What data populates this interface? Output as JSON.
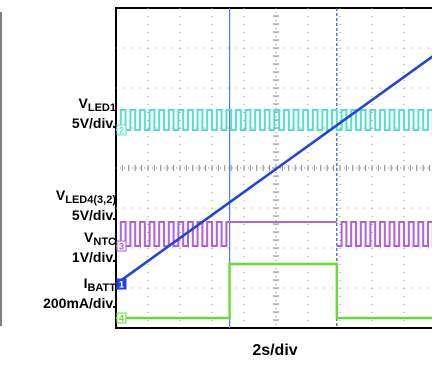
{
  "chart_data": {
    "type": "line",
    "title": "",
    "xlabel": "2s/div",
    "divisions": {
      "x": 10,
      "y": 8
    },
    "channels": [
      {
        "id": "2",
        "name_main": "V",
        "name_sub": "LED1",
        "scale": "5V/div.",
        "color": "#55e0c8",
        "kind": "pwm",
        "high_div": 2.55,
        "low_div": 3.05,
        "period_div": 0.3,
        "duty": 0.5,
        "active_x_div": [
          [
            0,
            10
          ]
        ]
      },
      {
        "id": "3",
        "name_main": "V",
        "name_sub": "LED4(3,2)",
        "scale": "5V/div.",
        "color": "#b060e0",
        "kind": "pwm",
        "high_div": 5.35,
        "low_div": 5.95,
        "period_div": 0.3,
        "duty": 0.5,
        "active_x_div": [
          [
            0,
            3.55
          ],
          [
            6.9,
            10
          ]
        ]
      },
      {
        "id": "1",
        "name_main": "V",
        "name_sub": "NTC",
        "scale": "1V/div.",
        "color": "#2244dd",
        "kind": "ramp",
        "points_div": [
          [
            0,
            6.9
          ],
          [
            10,
            1.15
          ]
        ]
      },
      {
        "id": "4",
        "name_main": "I",
        "name_sub": "BATT",
        "scale": "200mA/div.",
        "color": "#66dd33",
        "kind": "steps",
        "points_div": [
          [
            0,
            7.75
          ],
          [
            3.55,
            7.75
          ],
          [
            3.55,
            6.4
          ],
          [
            6.9,
            6.4
          ],
          [
            6.9,
            7.75
          ],
          [
            10,
            7.75
          ]
        ]
      }
    ],
    "cursors": [
      {
        "x_div": 3.55,
        "color": "#5577ff",
        "style": "solid"
      },
      {
        "x_div": 6.9,
        "color": "#3355cc",
        "style": "dashed"
      }
    ],
    "grid": true
  }
}
